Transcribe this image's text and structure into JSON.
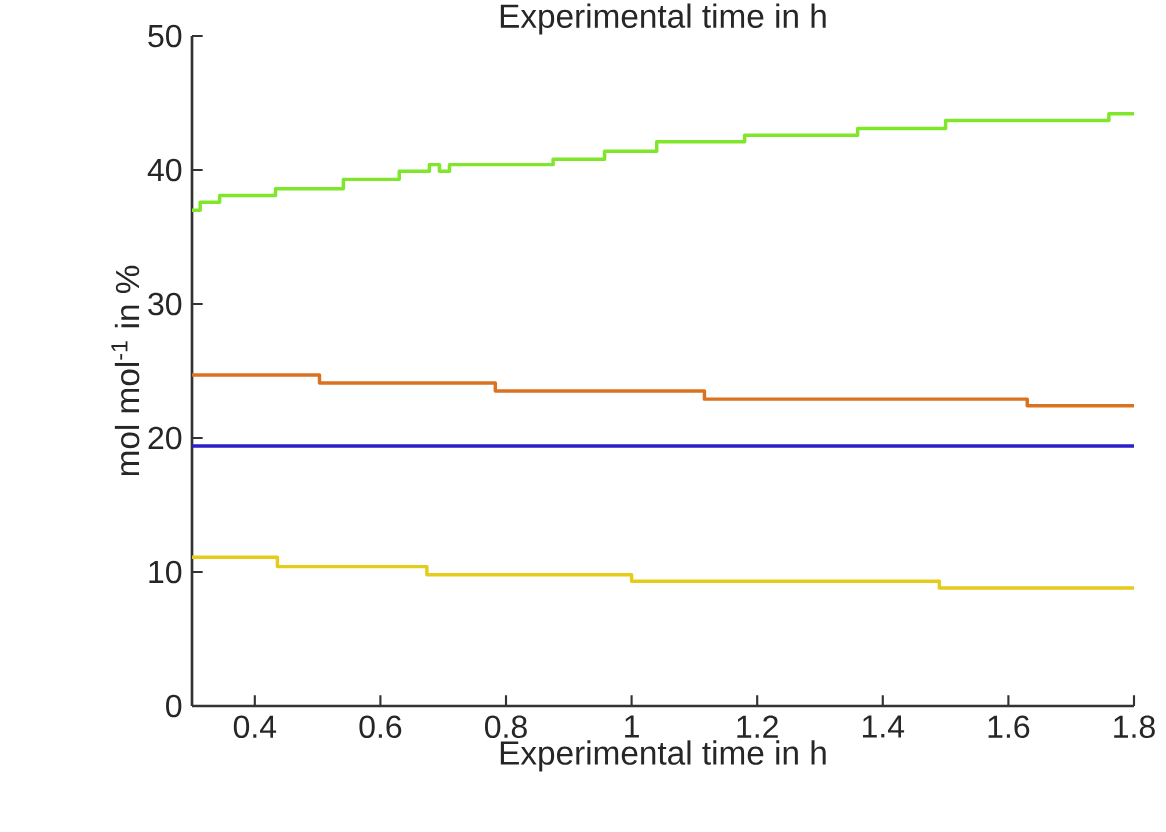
{
  "chart_data": {
    "type": "step",
    "title": "Experimental time in h",
    "xlabel": "Experimental time in h",
    "ylabel": "mol mol$^{-1}$ in %",
    "xlim": [
      0.3,
      1.8
    ],
    "xticks": [
      0.4,
      0.6,
      0.8,
      1,
      1.2,
      1.4,
      1.6,
      1.8
    ],
    "ylim": [
      0,
      50
    ],
    "yticks": [
      0,
      10,
      20,
      30,
      40,
      50
    ],
    "series": [
      {
        "color": "#7fe62a",
        "x": [
          0.3,
          0.313,
          0.344,
          0.433,
          0.541,
          0.63,
          0.678,
          0.694,
          0.71,
          0.875,
          0.957,
          1.04,
          1.18,
          1.36,
          1.5,
          1.76,
          1.8
        ],
        "values": [
          37.0,
          37.6,
          38.1,
          38.6,
          39.3,
          39.9,
          40.4,
          39.9,
          40.4,
          40.8,
          41.4,
          42.1,
          42.6,
          43.1,
          43.7,
          44.2,
          44.2
        ]
      },
      {
        "color": "#d9731f",
        "x": [
          0.3,
          0.503,
          0.783,
          1.116,
          1.63,
          1.8
        ],
        "values": [
          24.7,
          24.1,
          23.5,
          22.9,
          22.4,
          22.4
        ]
      },
      {
        "color": "#2a1fc8",
        "x": [
          0.3,
          1.8
        ],
        "values": [
          19.4,
          19.4
        ]
      },
      {
        "color": "#e6cc1a",
        "x": [
          0.3,
          0.436,
          0.674,
          1.0,
          1.49,
          1.8
        ],
        "values": [
          11.1,
          10.4,
          9.8,
          9.3,
          8.8,
          8.8
        ]
      }
    ]
  }
}
